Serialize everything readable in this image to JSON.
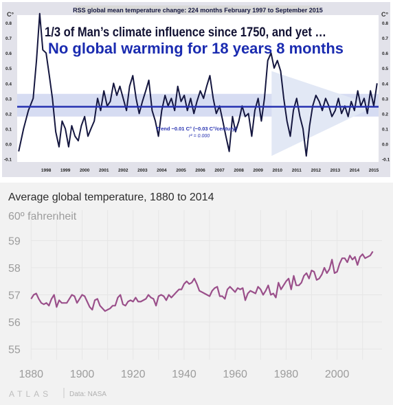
{
  "chart_data": [
    {
      "type": "line",
      "title": "RSS global mean temperature change: 224 months February 1997 to September 2015",
      "headline_1": "1/3 of Man’s climate influence since 1750, and yet …",
      "headline_2": "No global warming for 18 years 8 months",
      "ylabel": "C°",
      "ylim": [
        -0.12,
        0.85
      ],
      "xlim": [
        1997.0,
        2015.75
      ],
      "y_ticks": [
        "0.8",
        "0.7",
        "0.6",
        "0.5",
        "0.4",
        "0.3",
        "0.2",
        "0.1",
        "0.0",
        "-0.1"
      ],
      "x_ticks": [
        "1998",
        "1999",
        "2000",
        "2001",
        "2002",
        "2003",
        "2004",
        "2005",
        "2006",
        "2007",
        "2008",
        "2009",
        "2010",
        "2011",
        "2012",
        "2013",
        "2014",
        "2015"
      ],
      "trend_label": "Trend −0.01 C° (−0.03 C°/century)",
      "r2_label": "r² = 0.000",
      "trend_value": 0.245,
      "band_range": [
        0.18,
        0.33
      ],
      "colors": {
        "series": "#14163f",
        "trend": "#2530b0",
        "band": "#d6dcf2",
        "arrow": "#e2e8f5",
        "frame": "#e2e2ea",
        "title_bg": "#d9d9d9",
        "headline_1": "#111133",
        "headline_2": "#1a2bb0"
      },
      "series": [
        {
          "name": "",
          "x": [
            1997.08,
            1997.33,
            1997.58,
            1997.83,
            1998.0,
            1998.17,
            1998.33,
            1998.5,
            1998.67,
            1998.83,
            1999.0,
            1999.17,
            1999.33,
            1999.5,
            1999.67,
            1999.83,
            2000.0,
            2000.17,
            2000.33,
            2000.5,
            2000.67,
            2000.83,
            2001.0,
            2001.17,
            2001.33,
            2001.5,
            2001.67,
            2001.83,
            2002.0,
            2002.17,
            2002.33,
            2002.5,
            2002.67,
            2002.83,
            2003.0,
            2003.17,
            2003.33,
            2003.5,
            2003.67,
            2003.83,
            2004.0,
            2004.17,
            2004.33,
            2004.5,
            2004.67,
            2004.83,
            2005.0,
            2005.17,
            2005.33,
            2005.5,
            2005.67,
            2005.83,
            2006.0,
            2006.17,
            2006.33,
            2006.5,
            2006.67,
            2006.83,
            2007.0,
            2007.17,
            2007.33,
            2007.5,
            2007.67,
            2007.83,
            2008.0,
            2008.17,
            2008.33,
            2008.5,
            2008.67,
            2008.83,
            2009.0,
            2009.17,
            2009.33,
            2009.5,
            2009.67,
            2009.83,
            2010.0,
            2010.17,
            2010.33,
            2010.5,
            2010.67,
            2010.83,
            2011.0,
            2011.17,
            2011.33,
            2011.5,
            2011.67,
            2011.83,
            2012.0,
            2012.17,
            2012.33,
            2012.5,
            2012.67,
            2012.83,
            2013.0,
            2013.17,
            2013.33,
            2013.5,
            2013.67,
            2013.83,
            2014.0,
            2014.17,
            2014.33,
            2014.5,
            2014.67,
            2014.83,
            2015.0,
            2015.17,
            2015.33,
            2015.5,
            2015.67
          ],
          "y": [
            -0.05,
            0.1,
            0.22,
            0.3,
            0.55,
            0.86,
            0.62,
            0.6,
            0.45,
            0.3,
            0.08,
            -0.02,
            0.15,
            0.1,
            -0.02,
            0.12,
            0.05,
            0.02,
            0.12,
            0.18,
            0.05,
            0.1,
            0.15,
            0.3,
            0.22,
            0.35,
            0.25,
            0.28,
            0.4,
            0.32,
            0.38,
            0.3,
            0.22,
            0.38,
            0.45,
            0.3,
            0.2,
            0.28,
            0.35,
            0.42,
            0.22,
            0.15,
            0.05,
            0.22,
            0.32,
            0.25,
            0.3,
            0.22,
            0.38,
            0.28,
            0.32,
            0.22,
            0.3,
            0.2,
            0.28,
            0.35,
            0.3,
            0.38,
            0.45,
            0.3,
            0.2,
            0.25,
            0.15,
            0.05,
            -0.05,
            0.18,
            0.08,
            0.15,
            0.25,
            0.18,
            0.2,
            0.05,
            0.22,
            0.3,
            0.15,
            0.3,
            0.55,
            0.6,
            0.5,
            0.55,
            0.48,
            0.3,
            0.15,
            0.05,
            0.22,
            0.3,
            0.18,
            0.1,
            -0.08,
            0.12,
            0.25,
            0.32,
            0.28,
            0.22,
            0.3,
            0.25,
            0.18,
            0.22,
            0.3,
            0.2,
            0.25,
            0.18,
            0.28,
            0.22,
            0.35,
            0.25,
            0.3,
            0.2,
            0.35,
            0.25,
            0.4
          ]
        }
      ]
    },
    {
      "type": "line",
      "title": "Average global temperature, 1880 to 2014",
      "ylabel": "60º fahrenheit",
      "y_ticks": [
        "59",
        "58",
        "57",
        "56",
        "55"
      ],
      "x_ticks": [
        "1880",
        "1900",
        "1920",
        "1940",
        "1960",
        "1980",
        "2000"
      ],
      "xlim": [
        1874,
        2016
      ],
      "ylim": [
        54.8,
        60.2
      ],
      "colors": {
        "series": "#9a4f8a",
        "grid": "#e6e6e6",
        "tick": "#9c9c9c",
        "title": "#2b2b2b"
      },
      "series": [
        {
          "name": "",
          "x": [
            1880,
            1881,
            1882,
            1883,
            1884,
            1885,
            1886,
            1887,
            1888,
            1889,
            1890,
            1891,
            1892,
            1893,
            1894,
            1895,
            1896,
            1897,
            1898,
            1899,
            1900,
            1901,
            1902,
            1903,
            1904,
            1905,
            1906,
            1907,
            1908,
            1909,
            1910,
            1911,
            1912,
            1913,
            1914,
            1915,
            1916,
            1917,
            1918,
            1919,
            1920,
            1921,
            1922,
            1923,
            1924,
            1925,
            1926,
            1927,
            1928,
            1929,
            1930,
            1931,
            1932,
            1933,
            1934,
            1935,
            1936,
            1937,
            1938,
            1939,
            1940,
            1941,
            1942,
            1943,
            1944,
            1945,
            1946,
            1947,
            1948,
            1949,
            1950,
            1951,
            1952,
            1953,
            1954,
            1955,
            1956,
            1957,
            1958,
            1959,
            1960,
            1961,
            1962,
            1963,
            1964,
            1965,
            1966,
            1967,
            1968,
            1969,
            1970,
            1971,
            1972,
            1973,
            1974,
            1975,
            1976,
            1977,
            1978,
            1979,
            1980,
            1981,
            1982,
            1983,
            1984,
            1985,
            1986,
            1987,
            1988,
            1989,
            1990,
            1991,
            1992,
            1993,
            1994,
            1995,
            1996,
            1997,
            1998,
            1999,
            2000,
            2001,
            2002,
            2003,
            2004,
            2005,
            2006,
            2007,
            2008,
            2009,
            2010,
            2011,
            2012,
            2013,
            2014
          ],
          "y": [
            56.85,
            57.0,
            57.05,
            56.85,
            56.7,
            56.65,
            56.7,
            56.6,
            56.85,
            57.0,
            56.55,
            56.8,
            56.7,
            56.7,
            56.7,
            56.85,
            57.0,
            56.95,
            56.7,
            56.85,
            57.0,
            56.95,
            56.75,
            56.55,
            56.45,
            56.8,
            56.85,
            56.6,
            56.5,
            56.4,
            56.45,
            56.5,
            56.6,
            56.6,
            56.9,
            57.0,
            56.65,
            56.6,
            56.75,
            56.8,
            56.75,
            56.9,
            56.75,
            56.75,
            56.8,
            56.85,
            57.0,
            56.9,
            56.85,
            56.6,
            56.95,
            57.0,
            56.95,
            56.8,
            57.0,
            56.9,
            57.0,
            57.1,
            57.2,
            57.2,
            57.4,
            57.5,
            57.4,
            57.45,
            57.6,
            57.4,
            57.15,
            57.1,
            57.05,
            57.0,
            56.95,
            57.15,
            57.25,
            57.3,
            56.95,
            56.95,
            56.85,
            57.2,
            57.3,
            57.2,
            57.1,
            57.25,
            57.2,
            57.25,
            56.8,
            57.05,
            57.15,
            57.1,
            57.05,
            57.3,
            57.2,
            57.0,
            57.15,
            57.35,
            57.0,
            57.05,
            56.9,
            57.45,
            57.2,
            57.35,
            57.5,
            57.6,
            57.2,
            57.7,
            57.35,
            57.35,
            57.45,
            57.7,
            57.8,
            57.6,
            57.9,
            57.85,
            57.55,
            57.6,
            57.75,
            58.0,
            57.8,
            57.95,
            58.3,
            57.8,
            57.85,
            58.15,
            58.35,
            58.35,
            58.2,
            58.45,
            58.3,
            58.4,
            58.1,
            58.4,
            58.5,
            58.35,
            58.4,
            58.45,
            58.6
          ]
        }
      ]
    }
  ],
  "footer": {
    "brand": "ATLAS",
    "source": "Data: NASA"
  }
}
